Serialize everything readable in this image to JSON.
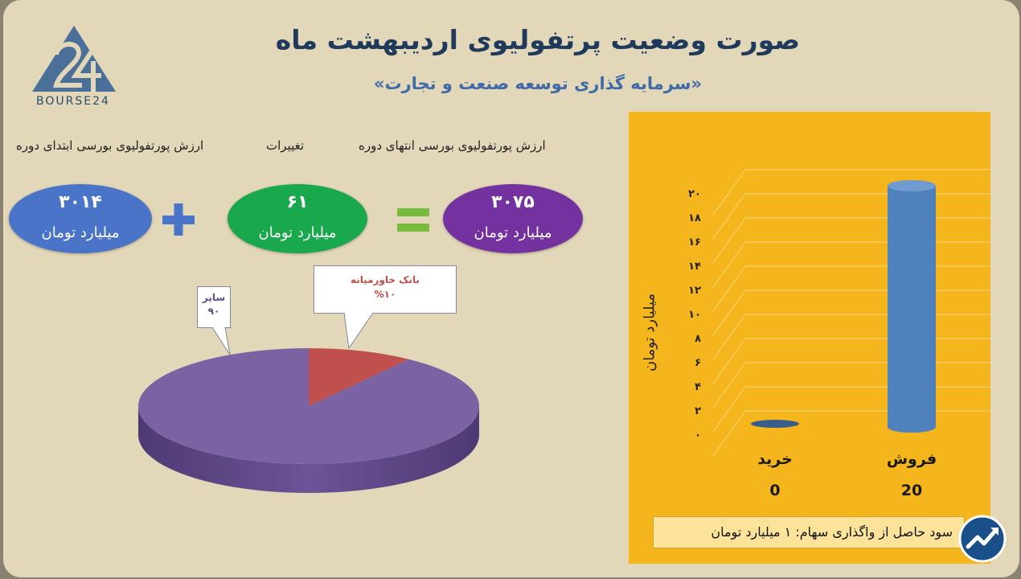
{
  "header": {
    "title": "صورت وضعیت پرتفولیوی اردیبهشت ماه",
    "subtitle": "«سرمایه گذاری توسعه صنعت و تجارت»",
    "logo_text": "BOURSE24"
  },
  "summary": {
    "end_label": "ارزش پورتفولیوی بورسی انتهای دوره",
    "change_label": "تغییرات",
    "start_label": "ارزش پورتفولیوی بورسی ابتدای دوره",
    "end_value": "۳۰۷۵",
    "change_value": "۶۱",
    "start_value": "۳۰۱۴",
    "unit": "میلیارد تومان",
    "colors": {
      "end": "#7431a0",
      "change": "#19a84c",
      "start": "#4a74c7",
      "operator": "#4a74c7",
      "equals": "#79bb3c"
    }
  },
  "chart_data": [
    {
      "type": "pie",
      "slices": [
        {
          "label": "بانک خاورمیانه",
          "value": 10,
          "value_text": "%۱۰",
          "color": "#c0504d"
        },
        {
          "label": "سایر",
          "value": 90,
          "value_text": "۹۰",
          "color": "#7b63a3"
        }
      ]
    },
    {
      "type": "bar",
      "categories": [
        "خرید",
        "فروش"
      ],
      "values": [
        0,
        20
      ],
      "value_labels": [
        "0",
        "20"
      ],
      "ylabel": "میلیارد تومان",
      "ylim": [
        0,
        20
      ],
      "ytick_labels": [
        "۰",
        "۲",
        "۴",
        "۶",
        "۸",
        "۱۰",
        "۱۲",
        "۱۴",
        "۱۶",
        "۱۸",
        "۲۰"
      ],
      "grid": true,
      "bar_color": "#4f81bd",
      "background": "#f4b51d"
    }
  ],
  "footer": {
    "profit_text": "سود حاصل از واگذاری سهام: ۱ میلیارد تومان"
  }
}
